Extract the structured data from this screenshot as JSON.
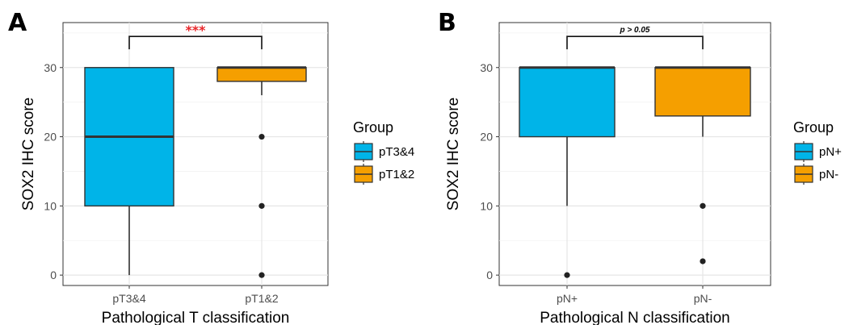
{
  "chart_data": [
    {
      "panel": "A",
      "type": "boxplot",
      "xlabel": "Pathological T classification",
      "ylabel": "SOX2 IHC score",
      "categories": [
        "pT3&4",
        "pT1&2"
      ],
      "yticks": [
        0,
        10,
        20,
        30
      ],
      "ylim": [
        -1.5,
        36.5
      ],
      "grid": true,
      "legend": {
        "title": "Group",
        "position": "right"
      },
      "series": [
        {
          "name": "pT3&4",
          "color": "#00b4e8",
          "min": 0,
          "q1": 10,
          "median": 20,
          "q3": 30,
          "max": 30,
          "outliers": []
        },
        {
          "name": "pT1&2",
          "color": "#f59f00",
          "min": 26,
          "q1": 28,
          "median": 30,
          "q3": 30,
          "max": 30,
          "outliers": [
            20,
            10,
            0
          ]
        }
      ],
      "annotation": {
        "text": "***",
        "from": 0,
        "to": 1,
        "y": 34.5,
        "color": "#e8262a"
      }
    },
    {
      "panel": "B",
      "type": "boxplot",
      "xlabel": "Pathological N classification",
      "ylabel": "SOX2 IHC score",
      "categories": [
        "pN+",
        "pN-"
      ],
      "yticks": [
        0,
        10,
        20,
        30
      ],
      "ylim": [
        -1.5,
        36.5
      ],
      "grid": true,
      "legend": {
        "title": "Group",
        "position": "right"
      },
      "series": [
        {
          "name": "pN+",
          "color": "#00b4e8",
          "min": 10,
          "q1": 20,
          "median": 30,
          "q3": 30,
          "max": 30,
          "outliers": [
            0
          ]
        },
        {
          "name": "pN-",
          "color": "#f59f00",
          "min": 20,
          "q1": 23,
          "median": 30,
          "q3": 30,
          "max": 30,
          "outliers": [
            10,
            2
          ]
        }
      ],
      "annotation": {
        "text": "p > 0.05",
        "from": 0,
        "to": 1,
        "y": 34.5,
        "color": "#000000"
      }
    }
  ]
}
